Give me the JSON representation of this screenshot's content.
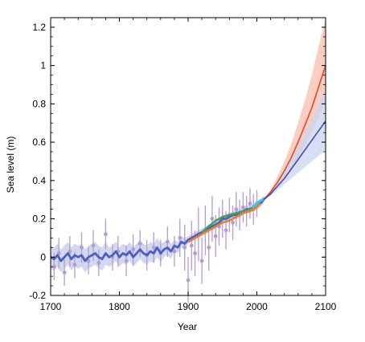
{
  "chart_data": {
    "type": "line",
    "xlabel": "Year",
    "ylabel": "Sea  level (m)",
    "xlim": [
      1700,
      2100
    ],
    "ylim": [
      -0.2,
      1.25
    ],
    "x_ticks": [
      1700,
      1800,
      1900,
      2000,
      2100
    ],
    "y_ticks": [
      -0.2,
      0,
      0.2,
      0.4,
      0.6,
      0.8,
      1,
      1.2
    ],
    "x_tick_labels": [
      "1700",
      "1800",
      "1900",
      "2000",
      "2100"
    ],
    "y_tick_labels": [
      "-0.2",
      "0",
      "0.2",
      "0.4",
      "0.6",
      "0.8",
      "1",
      "1.2"
    ],
    "grid": false,
    "colors": {
      "reconstruction": "#4a5fbf",
      "reconstruction_band": "#c7cdec",
      "proxy": "#b49bd1",
      "tide_gauge_orange": "#f07d2e",
      "tide_gauge_green": "#3aa655",
      "satellite": "#3fc3e6",
      "projection_high": "#e8452b",
      "projection_high_band": "#f9c2b0",
      "projection_low": "#3f4fb5",
      "projection_low_band": "#c9d4f2"
    },
    "reconstruction": {
      "x": [
        1700,
        1705,
        1710,
        1715,
        1720,
        1725,
        1730,
        1735,
        1740,
        1745,
        1750,
        1755,
        1760,
        1765,
        1770,
        1775,
        1780,
        1785,
        1790,
        1795,
        1800,
        1805,
        1810,
        1815,
        1820,
        1825,
        1830,
        1835,
        1840,
        1845,
        1850,
        1855,
        1860,
        1865,
        1870,
        1875,
        1880,
        1885,
        1890,
        1895,
        1900,
        1905,
        1910,
        1915,
        1920,
        1925,
        1930,
        1935,
        1940,
        1945,
        1950,
        1955,
        1960,
        1965,
        1970,
        1975,
        1980,
        1985,
        1990,
        1995,
        2000,
        2005,
        2010
      ],
      "y": [
        0.0,
        -0.01,
        0.01,
        -0.02,
        0.0,
        0.02,
        -0.01,
        0.01,
        0.0,
        0.01,
        -0.02,
        0.0,
        0.01,
        0.02,
        0.0,
        -0.01,
        0.02,
        0.0,
        0.01,
        0.03,
        0.0,
        0.02,
        0.01,
        0.03,
        0.0,
        0.02,
        0.04,
        0.02,
        0.01,
        0.03,
        0.02,
        0.05,
        0.02,
        0.04,
        0.05,
        0.03,
        0.06,
        0.05,
        0.08,
        0.07,
        0.09,
        0.1,
        0.11,
        0.12,
        0.13,
        0.14,
        0.15,
        0.16,
        0.17,
        0.18,
        0.2,
        0.2,
        0.21,
        0.22,
        0.22,
        0.23,
        0.24,
        0.25,
        0.25,
        0.26,
        0.27,
        0.28,
        0.3
      ],
      "band_halfwidth": [
        0.06,
        0.06,
        0.06,
        0.06,
        0.06,
        0.06,
        0.06,
        0.06,
        0.06,
        0.06,
        0.06,
        0.06,
        0.06,
        0.06,
        0.06,
        0.06,
        0.06,
        0.05,
        0.05,
        0.05,
        0.05,
        0.05,
        0.05,
        0.05,
        0.05,
        0.05,
        0.05,
        0.05,
        0.05,
        0.05,
        0.05,
        0.05,
        0.05,
        0.04,
        0.04,
        0.04,
        0.03,
        0.03,
        0.03,
        0.03,
        0.02,
        0.02,
        0.02,
        0.02,
        0.02,
        0.02,
        0.02,
        0.02,
        0.02,
        0.02,
        0.02,
        0.02,
        0.02,
        0.02,
        0.02,
        0.02,
        0.02,
        0.02,
        0.02,
        0.02,
        0.02,
        0.02,
        0.02
      ]
    },
    "proxy_points": {
      "x": [
        1705,
        1712,
        1720,
        1728,
        1735,
        1745,
        1755,
        1762,
        1770,
        1780,
        1790,
        1798,
        1810,
        1820,
        1830,
        1840,
        1850,
        1860,
        1870,
        1880,
        1888,
        1895,
        1900,
        1905,
        1910,
        1915,
        1920,
        1925,
        1930,
        1935,
        1940,
        1945,
        1950,
        1955,
        1960,
        1965,
        1970,
        1975,
        1980,
        1985,
        1990,
        1995,
        2000
      ],
      "y": [
        -0.05,
        0.02,
        -0.08,
        0.03,
        -0.04,
        0.05,
        -0.02,
        0.06,
        -0.03,
        0.12,
        0.0,
        0.03,
        -0.02,
        0.04,
        0.07,
        0.01,
        0.05,
        0.02,
        0.08,
        0.03,
        0.1,
        0.05,
        -0.12,
        0.06,
        0.02,
        0.12,
        -0.02,
        0.14,
        0.05,
        0.2,
        0.11,
        0.16,
        0.2,
        0.14,
        0.22,
        0.18,
        0.25,
        0.22,
        0.26,
        0.24,
        0.28,
        0.25,
        0.28
      ],
      "err": [
        0.07,
        0.08,
        0.07,
        0.08,
        0.07,
        0.08,
        0.07,
        0.08,
        0.07,
        0.08,
        0.07,
        0.08,
        0.08,
        0.08,
        0.07,
        0.08,
        0.08,
        0.07,
        0.08,
        0.08,
        0.1,
        0.12,
        0.12,
        0.13,
        0.12,
        0.14,
        0.12,
        0.13,
        0.12,
        0.12,
        0.11,
        0.1,
        0.1,
        0.1,
        0.09,
        0.09,
        0.09,
        0.08,
        0.08,
        0.08,
        0.08,
        0.08,
        0.07
      ]
    },
    "tide_gauge_orange": {
      "x": [
        1900,
        1910,
        1920,
        1930,
        1940,
        1950,
        1960,
        1970,
        1980,
        1990,
        2000,
        2005
      ],
      "y": [
        0.08,
        0.1,
        0.12,
        0.14,
        0.16,
        0.18,
        0.19,
        0.21,
        0.23,
        0.24,
        0.26,
        0.28
      ]
    },
    "tide_gauge_green": {
      "x": [
        1920,
        1930,
        1940,
        1950,
        1960,
        1970,
        1980,
        1990,
        2000
      ],
      "y": [
        0.13,
        0.16,
        0.19,
        0.21,
        0.22,
        0.23,
        0.24,
        0.25,
        0.27
      ]
    },
    "satellite": {
      "x": [
        1993,
        1998,
        2003,
        2008,
        2013
      ],
      "y": [
        0.26,
        0.27,
        0.29,
        0.3,
        0.31
      ]
    },
    "projection_high": {
      "x": [
        2010,
        2020,
        2030,
        2040,
        2050,
        2060,
        2070,
        2080,
        2090,
        2100
      ],
      "y": [
        0.3,
        0.34,
        0.39,
        0.45,
        0.52,
        0.6,
        0.69,
        0.78,
        0.89,
        1.0
      ],
      "lower": [
        0.3,
        0.33,
        0.37,
        0.41,
        0.46,
        0.52,
        0.58,
        0.65,
        0.73,
        0.81
      ],
      "upper": [
        0.3,
        0.35,
        0.42,
        0.5,
        0.59,
        0.7,
        0.82,
        0.95,
        1.1,
        1.25
      ]
    },
    "projection_low": {
      "x": [
        2010,
        2020,
        2030,
        2040,
        2050,
        2060,
        2070,
        2080,
        2090,
        2100
      ],
      "y": [
        0.3,
        0.33,
        0.37,
        0.41,
        0.46,
        0.51,
        0.56,
        0.61,
        0.66,
        0.71
      ],
      "lower": [
        0.3,
        0.32,
        0.35,
        0.38,
        0.41,
        0.44,
        0.47,
        0.5,
        0.53,
        0.56
      ],
      "upper": [
        0.3,
        0.34,
        0.39,
        0.45,
        0.51,
        0.58,
        0.65,
        0.72,
        0.8,
        0.87
      ]
    }
  }
}
